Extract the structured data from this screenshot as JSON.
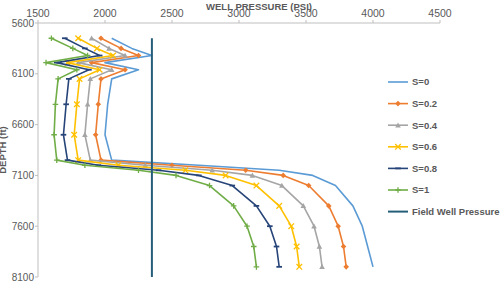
{
  "chart_data": {
    "type": "line",
    "x_label": "WELL PRESSURE (PSI)",
    "y_label": "DEPTH (ft)",
    "xlim": [
      1500,
      4500
    ],
    "xticks": [
      1500,
      2000,
      2500,
      3000,
      3500,
      4000,
      4500
    ],
    "ylim": [
      5600,
      8100
    ],
    "yticks": [
      5600,
      6100,
      6600,
      7100,
      7600,
      8100
    ],
    "grid": false,
    "legend": "right",
    "series": [
      {
        "name": "S=0",
        "color": "#5b9bd5",
        "marker": "none",
        "x": [
          2050,
          2200,
          2350,
          2000,
          2250,
          2050,
          2020,
          2000,
          2050,
          2700,
          3300,
          3550,
          3720,
          3850,
          3920,
          3960,
          4000
        ],
        "values": [
          5750,
          5850,
          5920,
          5990,
          6060,
          6150,
          6400,
          6700,
          6950,
          7000,
          7050,
          7100,
          7200,
          7400,
          7600,
          7800,
          8000
        ]
      },
      {
        "name": "S=0.2",
        "color": "#ed7d31",
        "marker": "diamond",
        "x": [
          1970,
          2120,
          2250,
          1900,
          2150,
          1970,
          1950,
          1930,
          1970,
          2500,
          3050,
          3330,
          3520,
          3670,
          3740,
          3780,
          3800
        ],
        "values": [
          5750,
          5850,
          5920,
          5990,
          6060,
          6150,
          6400,
          6700,
          6950,
          7000,
          7050,
          7100,
          7200,
          7400,
          7600,
          7800,
          8000
        ]
      },
      {
        "name": "S=0.4",
        "color": "#a5a5a5",
        "marker": "triangle",
        "x": [
          1900,
          2030,
          2150,
          1800,
          2050,
          1890,
          1870,
          1850,
          1890,
          2300,
          2800,
          3100,
          3320,
          3480,
          3560,
          3600,
          3620
        ],
        "values": [
          5750,
          5850,
          5920,
          5990,
          6060,
          6150,
          6400,
          6700,
          6950,
          7000,
          7050,
          7100,
          7200,
          7400,
          7600,
          7800,
          8000
        ]
      },
      {
        "name": "S=0.6",
        "color": "#ffc000",
        "marker": "cross",
        "x": [
          1800,
          1940,
          2060,
          1720,
          1960,
          1810,
          1790,
          1770,
          1800,
          2100,
          2600,
          2900,
          3130,
          3300,
          3390,
          3430,
          3450
        ],
        "values": [
          5750,
          5850,
          5920,
          5990,
          6060,
          6150,
          6400,
          6700,
          6950,
          7000,
          7050,
          7100,
          7200,
          7400,
          7600,
          7800,
          8000
        ]
      },
      {
        "name": "S=0.8",
        "color": "#264478",
        "marker": "dash",
        "x": [
          1700,
          1850,
          1960,
          1640,
          1880,
          1730,
          1710,
          1690,
          1720,
          1950,
          2400,
          2700,
          2950,
          3130,
          3230,
          3280,
          3300
        ],
        "values": [
          5750,
          5850,
          5920,
          5990,
          6060,
          6150,
          6400,
          6700,
          6950,
          7000,
          7050,
          7100,
          7200,
          7400,
          7600,
          7800,
          8000
        ]
      },
      {
        "name": "S=1",
        "color": "#70ad47",
        "marker": "plus",
        "x": [
          1600,
          1760,
          1870,
          1560,
          1790,
          1650,
          1630,
          1620,
          1640,
          1850,
          2250,
          2530,
          2780,
          2960,
          3060,
          3110,
          3130
        ],
        "values": [
          5750,
          5850,
          5920,
          5990,
          6060,
          6150,
          6400,
          6700,
          6950,
          7000,
          7050,
          7100,
          7200,
          7400,
          7600,
          7800,
          8000
        ]
      },
      {
        "name": "Field Well Pressure",
        "color": "#255e79",
        "marker": "none",
        "x": [
          2350,
          2350
        ],
        "values": [
          5750,
          8100
        ]
      }
    ]
  }
}
